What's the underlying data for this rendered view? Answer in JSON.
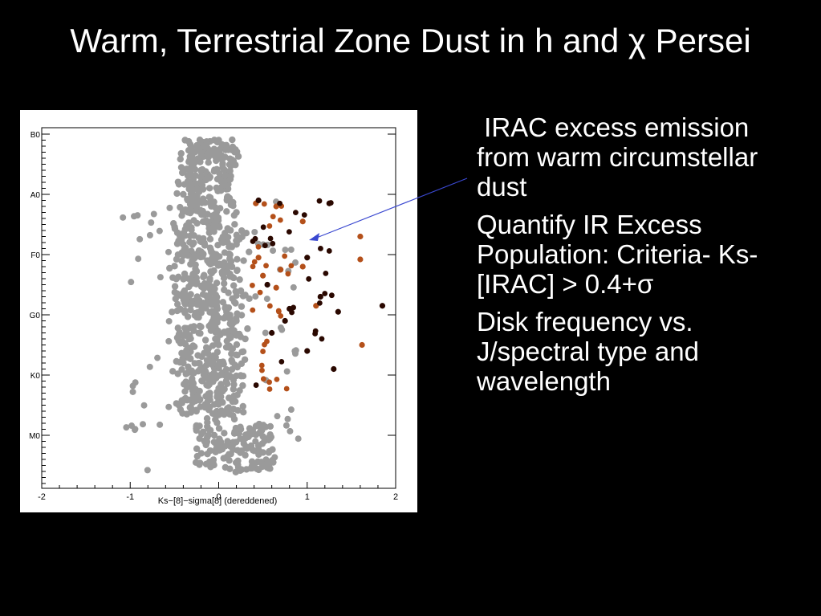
{
  "slide": {
    "title": "Warm, Terrestrial Zone Dust in h and χ Persei",
    "bullets": [
      " IRAC excess emission from warm circumstellar dust",
      "Quantify IR Excess Population: Criteria- Ks-[IRAC] > 0.4+σ",
      "Disk frequency vs. J/spectral type and wavelength"
    ]
  },
  "colors": {
    "background": "#000000",
    "panel": "#ffffff",
    "members": "#9a9a9a",
    "excess_weak": "#b4501a",
    "excess_strong": "#2a0800",
    "pointer": "#3a48d0"
  },
  "chart_data": {
    "type": "scatter",
    "xlabel": "Ks−[8]−sigma[8] (dereddened)",
    "ylabel": "",
    "xlim": [
      -2,
      2
    ],
    "x_ticks": [
      -2,
      -1,
      0,
      1,
      2
    ],
    "y_ticks": [
      "B0",
      "A0",
      "F0",
      "G0",
      "K0",
      "M0"
    ],
    "y_ticks_note": "spectral type axis, top to bottom: B0 A0 F0 G0 K0 M0",
    "series": [
      {
        "key": "members",
        "color": "#9a9a9a",
        "points": [
          [
            -0.38,
            "B0",
            0.1
          ],
          [
            -0.3,
            "B0",
            0.4
          ],
          [
            -0.2,
            "B0",
            0.6
          ],
          [
            -0.1,
            "B0",
            0.3
          ],
          [
            0.0,
            "B0",
            0.1
          ],
          [
            -0.25,
            "A0",
            0.2
          ],
          [
            -0.05,
            "A0",
            0.5
          ],
          [
            0.05,
            "A0",
            0.8
          ],
          [
            -0.4,
            "A0",
            0.0
          ],
          [
            0.2,
            "A0",
            0.3
          ],
          [
            -0.3,
            "F0",
            0.1
          ],
          [
            -0.1,
            "F0",
            0.4
          ],
          [
            0.15,
            "F0",
            0.2
          ],
          [
            -0.35,
            "F0",
            0.7
          ],
          [
            0.25,
            "F0",
            0.6
          ],
          [
            -0.2,
            "G0",
            0.2
          ],
          [
            0.0,
            "G0",
            0.5
          ],
          [
            0.2,
            "G0",
            0.1
          ],
          [
            -0.4,
            "G0",
            0.8
          ],
          [
            0.3,
            "G0",
            0.4
          ],
          [
            -0.1,
            "K0",
            0.3
          ],
          [
            0.1,
            "K0",
            0.6
          ],
          [
            -0.3,
            "K0",
            0.1
          ],
          [
            0.25,
            "K0",
            0.9
          ],
          [
            -0.45,
            "K0",
            0.5
          ],
          [
            -0.05,
            "M0",
            0.0
          ],
          [
            0.1,
            "M0",
            0.1
          ],
          [
            0.3,
            "M0",
            0.05
          ],
          [
            0.5,
            "M0",
            0.02
          ],
          [
            -0.15,
            "M0",
            0.12
          ]
        ]
      },
      {
        "key": "excess_weak",
        "color": "#b4501a",
        "points": [
          [
            0.42,
            "A0",
            0.15
          ],
          [
            0.65,
            "A0",
            0.2
          ],
          [
            0.95,
            "A0",
            0.45
          ],
          [
            1.6,
            "A0",
            0.7
          ],
          [
            0.45,
            "F0",
            0.05
          ],
          [
            0.7,
            "F0",
            0.25
          ],
          [
            0.95,
            "F0",
            0.2
          ],
          [
            1.6,
            "F0",
            0.08
          ],
          [
            0.5,
            "F0",
            0.35
          ],
          [
            0.65,
            "F0",
            0.55
          ],
          [
            1.1,
            "F0",
            0.85
          ],
          [
            1.62,
            "G0",
            0.5
          ]
        ]
      },
      {
        "key": "excess_strong",
        "color": "#2a0800",
        "points": [
          [
            0.45,
            "A0",
            0.1
          ],
          [
            1.25,
            "A0",
            0.15
          ],
          [
            1.0,
            "F0",
            0.05
          ],
          [
            0.55,
            "F0",
            0.5
          ],
          [
            0.8,
            "F0",
            0.9
          ],
          [
            1.15,
            "F0",
            0.7
          ],
          [
            1.35,
            "F0",
            0.95
          ],
          [
            0.6,
            "G0",
            0.3
          ],
          [
            0.75,
            "G0",
            0.1
          ],
          [
            1.0,
            "G0",
            0.6
          ],
          [
            1.3,
            "G0",
            0.9
          ],
          [
            1.85,
            "F0",
            0.85
          ]
        ]
      }
    ]
  }
}
